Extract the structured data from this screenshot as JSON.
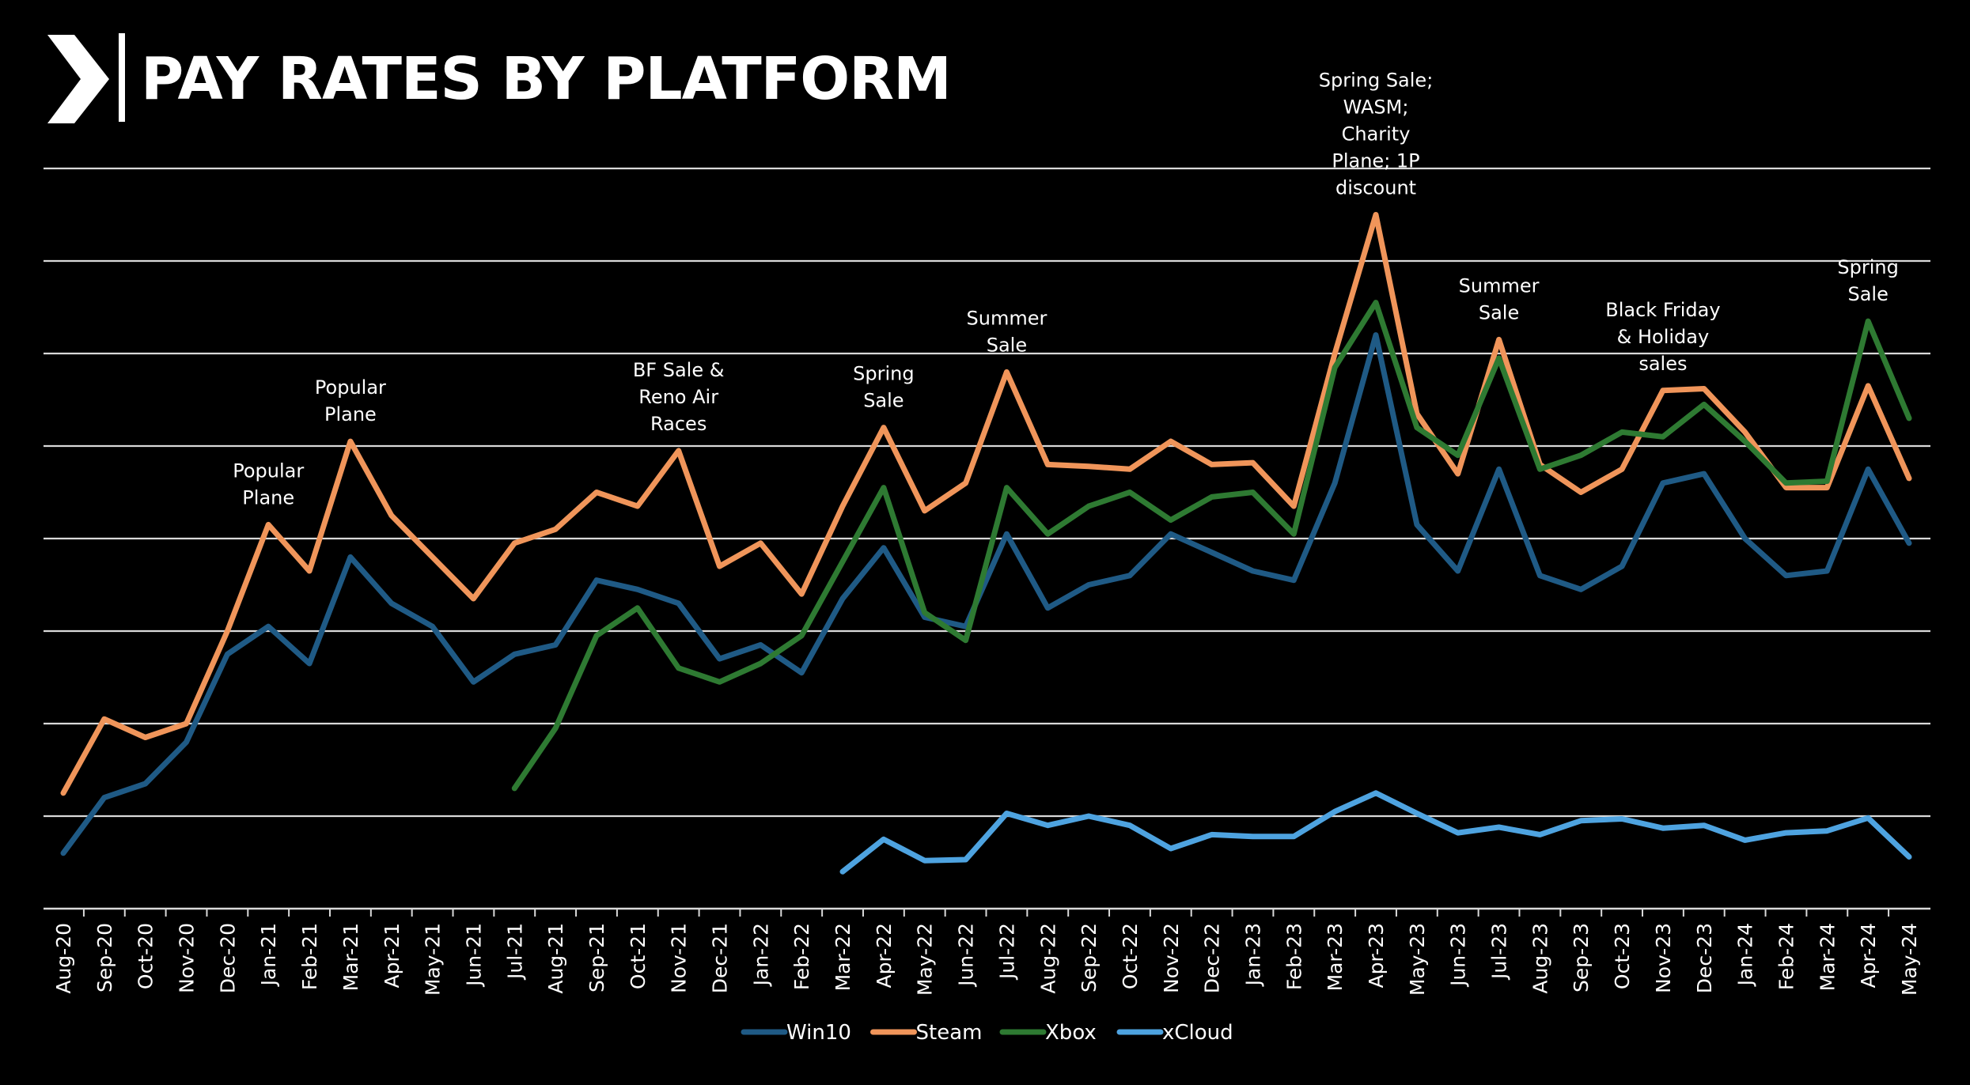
{
  "title": "PAY RATES BY PLATFORM",
  "chart_data": {
    "type": "line",
    "title": "PAY RATES BY PLATFORM",
    "xlabel": "",
    "ylabel": "",
    "ylim": [
      0,
      8
    ],
    "grid": true,
    "legend_position": "bottom",
    "categories": [
      "Aug-20",
      "Sep-20",
      "Oct-20",
      "Nov-20",
      "Dec-20",
      "Jan-21",
      "Feb-21",
      "Mar-21",
      "Apr-21",
      "May-21",
      "Jun-21",
      "Jul-21",
      "Aug-21",
      "Sep-21",
      "Oct-21",
      "Nov-21",
      "Dec-21",
      "Jan-22",
      "Feb-22",
      "Mar-22",
      "Apr-22",
      "May-22",
      "Jun-22",
      "Jul-22",
      "Aug-22",
      "Sep-22",
      "Oct-22",
      "Nov-22",
      "Dec-22",
      "Jan-23",
      "Feb-23",
      "Mar-23",
      "Apr-23",
      "May-23",
      "Jun-23",
      "Jul-23",
      "Aug-23",
      "Sep-23",
      "Oct-23",
      "Nov-23",
      "Dec-23",
      "Jan-24",
      "Feb-24",
      "Mar-24",
      "Apr-24",
      "May-24"
    ],
    "series": [
      {
        "name": "Win10",
        "color": "#1f5a85",
        "values": [
          0.6,
          1.2,
          1.35,
          1.8,
          2.75,
          3.05,
          2.65,
          3.8,
          3.3,
          3.05,
          2.45,
          2.75,
          2.85,
          3.55,
          3.45,
          3.3,
          2.7,
          2.85,
          2.55,
          3.35,
          3.9,
          3.15,
          3.05,
          4.05,
          3.25,
          3.5,
          3.6,
          4.05,
          3.85,
          3.65,
          3.55,
          4.6,
          6.2,
          4.15,
          3.65,
          4.75,
          3.6,
          3.45,
          3.7,
          4.6,
          4.7,
          4.0,
          3.6,
          3.65,
          4.75,
          3.95
        ]
      },
      {
        "name": "Steam",
        "color": "#f0955a",
        "values": [
          1.25,
          2.05,
          1.85,
          2.0,
          3.0,
          4.15,
          3.65,
          5.05,
          4.25,
          3.8,
          3.35,
          3.95,
          4.1,
          4.5,
          4.35,
          4.95,
          3.7,
          3.95,
          3.4,
          4.35,
          5.2,
          4.3,
          4.6,
          5.8,
          4.8,
          4.78,
          4.75,
          5.05,
          4.8,
          4.82,
          4.35,
          6.0,
          7.5,
          5.35,
          4.7,
          6.15,
          4.8,
          4.5,
          4.75,
          5.6,
          5.62,
          5.15,
          4.55,
          4.55,
          5.65,
          4.65
        ]
      },
      {
        "name": "Xbox",
        "color": "#2e7a32",
        "values": [
          null,
          null,
          null,
          null,
          null,
          null,
          null,
          null,
          null,
          null,
          null,
          1.3,
          1.95,
          2.95,
          3.25,
          2.6,
          2.45,
          2.65,
          2.95,
          3.75,
          4.55,
          3.2,
          2.9,
          4.55,
          4.05,
          4.35,
          4.5,
          4.2,
          4.45,
          4.5,
          4.05,
          5.85,
          6.55,
          5.2,
          4.9,
          5.95,
          4.75,
          4.9,
          5.15,
          5.1,
          5.45,
          5.05,
          4.6,
          4.62,
          6.35,
          5.3
        ]
      },
      {
        "name": "xCloud",
        "color": "#4ea3e0",
        "values": [
          null,
          null,
          null,
          null,
          null,
          null,
          null,
          null,
          null,
          null,
          null,
          null,
          null,
          null,
          null,
          null,
          null,
          null,
          null,
          0.4,
          0.75,
          0.52,
          0.53,
          1.03,
          0.9,
          1.0,
          0.9,
          0.65,
          0.8,
          0.78,
          0.78,
          1.05,
          1.25,
          1.03,
          0.82,
          0.88,
          0.8,
          0.95,
          0.97,
          0.87,
          0.9,
          0.74,
          0.82,
          0.84,
          0.98,
          0.56
        ]
      }
    ],
    "annotations": [
      {
        "category": "Jan-21",
        "text": [
          "Popular",
          "Plane"
        ]
      },
      {
        "category": "Mar-21",
        "text": [
          "Popular",
          "Plane"
        ]
      },
      {
        "category": "Nov-21",
        "text": [
          "BF Sale &",
          "Reno Air",
          "Races"
        ]
      },
      {
        "category": "Apr-22",
        "text": [
          "Spring",
          "Sale"
        ]
      },
      {
        "category": "Jul-22",
        "text": [
          "Summer",
          "Sale"
        ]
      },
      {
        "category": "Apr-23",
        "text": [
          "Spring Sale;",
          "WASM;",
          "Charity",
          "Plane; 1P",
          "discount"
        ]
      },
      {
        "category": "Jul-23",
        "text": [
          "Summer",
          "Sale"
        ]
      },
      {
        "category": "Nov-23",
        "text": [
          "Black Friday",
          "& Holiday",
          "sales"
        ]
      },
      {
        "category": "Apr-24",
        "text": [
          "Spring",
          "Sale"
        ]
      }
    ]
  }
}
